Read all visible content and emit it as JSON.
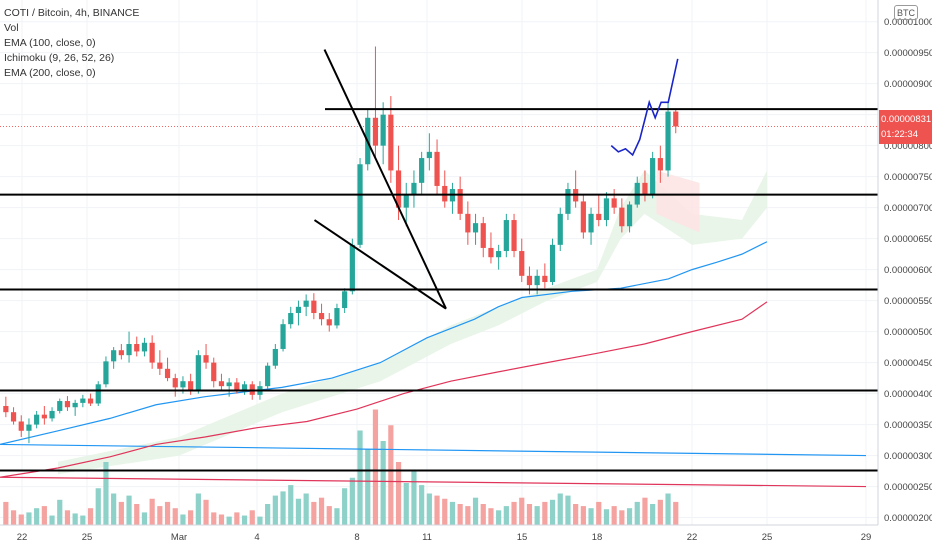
{
  "legend": {
    "title": "COTI / Bitcoin, 4h, BINANCE",
    "lines": [
      "Vol",
      "EMA (100, close, 0)",
      "Ichimoku (9, 26, 52, 26)",
      "EMA (200, close, 0)"
    ]
  },
  "currency": "BTC",
  "last_price": {
    "price": "0.00000831",
    "countdown": "01:22:34"
  },
  "colors": {
    "up": "#26a69a",
    "down": "#ef5350",
    "vol_up": "#8ed1c9",
    "vol_down": "#f4a3a0",
    "ema100": "#2196f3",
    "ema200": "#e0355a",
    "projection": "#1a25c8",
    "cloud_up": "#e6f4e6",
    "cloud_down": "#fde4e4",
    "drawing": "#000000"
  },
  "chart_data": {
    "type": "candlestick",
    "title": "COTI / Bitcoin, 4h, BINANCE",
    "y_ticks": [
      "0.00000200",
      "0.00000250",
      "0.00000300",
      "0.00000350",
      "0.00000400",
      "0.00000450",
      "0.00000500",
      "0.00000550",
      "0.00000600",
      "0.00000650",
      "0.00000700",
      "0.00000750",
      "0.00000800",
      "0.00000850",
      "0.00000900",
      "0.00000950",
      "0.00001000"
    ],
    "ylim": [
      1.88e-06,
      1.035e-05
    ],
    "x_ticks": [
      "22",
      "25",
      "Mar",
      "4",
      "8",
      "11",
      "15",
      "18",
      "22",
      "25",
      "29"
    ],
    "visible_last_price": 8.31e-06,
    "horizontal_levels": [
      8.59e-06,
      7.21e-06,
      5.68e-06,
      4.05e-06,
      2.76e-06
    ],
    "wedge": {
      "upper_line": [
        [
          8.7,
          9.55e-06
        ],
        [
          13.8,
          5.37e-06
        ]
      ],
      "lower_line": [
        [
          8.3,
          6.8e-06
        ],
        [
          13.8,
          5.37e-06
        ]
      ]
    },
    "projection": [
      [
        20.6,
        8e-06
      ],
      [
        20.9,
        7.9e-06
      ],
      [
        21.2,
        7.95e-06
      ],
      [
        21.5,
        7.85e-06
      ],
      [
        21.8,
        8.1e-06
      ],
      [
        22.0,
        8.4e-06
      ],
      [
        22.2,
        8.7e-06
      ],
      [
        22.45,
        8.45e-06
      ],
      [
        22.7,
        8.7e-06
      ],
      [
        23.0,
        8.7e-06
      ],
      [
        23.4,
        9.4e-06
      ]
    ],
    "ema100": [
      [
        20.0,
        3e-06
      ],
      [
        22.0,
        3.18e-06
      ],
      [
        24.0,
        3.4e-06
      ],
      [
        26.0,
        3.6e-06
      ],
      [
        28.0,
        3.82e-06
      ],
      [
        30.0,
        3.95e-06
      ],
      [
        33.0,
        4.1e-06
      ],
      [
        35.0,
        4.25e-06
      ],
      [
        37.0,
        4.5e-06
      ],
      [
        39.0,
        4.9e-06
      ],
      [
        41.0,
        5.2e-06
      ],
      [
        42.0,
        5.4e-06
      ],
      [
        43.0,
        5.55e-06
      ],
      [
        45.0,
        5.65e-06
      ],
      [
        47.0,
        5.7e-06
      ],
      [
        49.0,
        5.85e-06
      ],
      [
        50.0,
        6e-06
      ],
      [
        51.0,
        6.12e-06
      ],
      [
        52.0,
        6.25e-06
      ],
      [
        53.0,
        6.45e-06
      ]
    ],
    "ema200": [
      [
        20.0,
        2.5e-06
      ],
      [
        22.0,
        2.65e-06
      ],
      [
        24.0,
        2.8e-06
      ],
      [
        26.0,
        2.98e-06
      ],
      [
        28.0,
        3.18e-06
      ],
      [
        30.0,
        3.3e-06
      ],
      [
        32.0,
        3.45e-06
      ],
      [
        34.0,
        3.55e-06
      ],
      [
        36.0,
        3.75e-06
      ],
      [
        38.0,
        4e-06
      ],
      [
        40.0,
        4.2e-06
      ],
      [
        42.0,
        4.35e-06
      ],
      [
        44.0,
        4.5e-06
      ],
      [
        46.0,
        4.65e-06
      ],
      [
        48.0,
        4.8e-06
      ],
      [
        50.0,
        5e-06
      ],
      [
        52.0,
        5.2e-06
      ],
      [
        53.0,
        5.48e-06
      ]
    ],
    "candles": [
      [
        3.8e-06,
        3.95e-06,
        3.62e-06,
        3.7e-06
      ],
      [
        3.7e-06,
        3.78e-06,
        3.5e-06,
        3.55e-06
      ],
      [
        3.55e-06,
        3.65e-06,
        3.3e-06,
        3.4e-06
      ],
      [
        3.4e-06,
        3.6e-06,
        3.2e-06,
        3.5e-06
      ],
      [
        3.5e-06,
        3.72e-06,
        3.44e-06,
        3.66e-06
      ],
      [
        3.66e-06,
        3.8e-06,
        3.5e-06,
        3.6e-06
      ],
      [
        3.6e-06,
        3.78e-06,
        3.55e-06,
        3.72e-06
      ],
      [
        3.72e-06,
        3.92e-06,
        3.68e-06,
        3.88e-06
      ],
      [
        3.88e-06,
        3.96e-06,
        3.72e-06,
        3.78e-06
      ],
      [
        3.78e-06,
        3.9e-06,
        3.64e-06,
        3.85e-06
      ],
      [
        3.85e-06,
        3.98e-06,
        3.78e-06,
        3.92e-06
      ],
      [
        3.92e-06,
        4e-06,
        3.8e-06,
        3.84e-06
      ],
      [
        3.84e-06,
        4.2e-06,
        3.8e-06,
        4.15e-06
      ],
      [
        4.15e-06,
        4.6e-06,
        4.1e-06,
        4.52e-06
      ],
      [
        4.52e-06,
        4.75e-06,
        4.4e-06,
        4.7e-06
      ],
      [
        4.7e-06,
        4.8e-06,
        4.55e-06,
        4.62e-06
      ],
      [
        4.62e-06,
        5e-06,
        4.5e-06,
        4.8e-06
      ],
      [
        4.8e-06,
        4.92e-06,
        4.6e-06,
        4.68e-06
      ],
      [
        4.68e-06,
        4.9e-06,
        4.6e-06,
        4.82e-06
      ],
      [
        4.82e-06,
        4.94e-06,
        4.4e-06,
        4.5e-06
      ],
      [
        4.5e-06,
        4.7e-06,
        4.3e-06,
        4.4e-06
      ],
      [
        4.4e-06,
        4.58e-06,
        4.2e-06,
        4.25e-06
      ],
      [
        4.25e-06,
        4.32e-06,
        3.95e-06,
        4.1e-06
      ],
      [
        4.1e-06,
        4.28e-06,
        4e-06,
        4.2e-06
      ],
      [
        4.2e-06,
        4.32e-06,
        3.98e-06,
        4.05e-06
      ],
      [
        4.05e-06,
        4.7e-06,
        4e-06,
        4.62e-06
      ],
      [
        4.62e-06,
        4.8e-06,
        4.4e-06,
        4.5e-06
      ],
      [
        4.5e-06,
        4.58e-06,
        4.1e-06,
        4.2e-06
      ],
      [
        4.2e-06,
        4.32e-06,
        4.05e-06,
        4.12e-06
      ],
      [
        4.12e-06,
        4.25e-06,
        3.95e-06,
        4.18e-06
      ],
      [
        4.18e-06,
        4.25e-06,
        4e-06,
        4.05e-06
      ],
      [
        4.05e-06,
        4.2e-06,
        3.98e-06,
        4.15e-06
      ],
      [
        4.15e-06,
        4.2e-06,
        3.9e-06,
        3.98e-06
      ],
      [
        3.98e-06,
        4.2e-06,
        3.9e-06,
        4.12e-06
      ],
      [
        4.12e-06,
        4.5e-06,
        4.05e-06,
        4.45e-06
      ],
      [
        4.45e-06,
        4.8e-06,
        4.4e-06,
        4.72e-06
      ],
      [
        4.72e-06,
        5.2e-06,
        4.68e-06,
        5.12e-06
      ],
      [
        5.12e-06,
        5.4e-06,
        5.05e-06,
        5.3e-06
      ],
      [
        5.3e-06,
        5.5e-06,
        5.1e-06,
        5.4e-06
      ],
      [
        5.4e-06,
        5.6e-06,
        5.25e-06,
        5.5e-06
      ],
      [
        5.5e-06,
        5.62e-06,
        5.2e-06,
        5.3e-06
      ],
      [
        5.3e-06,
        5.45e-06,
        5.1e-06,
        5.2e-06
      ],
      [
        5.2e-06,
        5.3e-06,
        5e-06,
        5.1e-06
      ],
      [
        5.1e-06,
        5.45e-06,
        5.05e-06,
        5.38e-06
      ],
      [
        5.38e-06,
        5.7e-06,
        5.3e-06,
        5.65e-06
      ],
      [
        5.65e-06,
        6.5e-06,
        5.6e-06,
        6.4e-06
      ],
      [
        6.4e-06,
        7.8e-06,
        6.35e-06,
        7.7e-06
      ],
      [
        7.7e-06,
        8.6e-06,
        7.6e-06,
        8.45e-06
      ],
      [
        8.45e-06,
        9.6e-06,
        7.8e-06,
        8e-06
      ],
      [
        8e-06,
        8.7e-06,
        7.7e-06,
        8.5e-06
      ],
      [
        8.5e-06,
        8.8e-06,
        7.4e-06,
        7.6e-06
      ],
      [
        7.6e-06,
        8e-06,
        6.8e-06,
        7e-06
      ],
      [
        7e-06,
        7.4e-06,
        6.7e-06,
        7.2e-06
      ],
      [
        7.2e-06,
        7.6e-06,
        7e-06,
        7.4e-06
      ],
      [
        7.4e-06,
        7.9e-06,
        7.2e-06,
        7.8e-06
      ],
      [
        7.8e-06,
        8.2e-06,
        7.6e-06,
        7.9e-06
      ],
      [
        7.9e-06,
        8.1e-06,
        7.2e-06,
        7.35e-06
      ],
      [
        7.35e-06,
        7.6e-06,
        7e-06,
        7.1e-06
      ],
      [
        7.1e-06,
        7.4e-06,
        6.9e-06,
        7.3e-06
      ],
      [
        7.3e-06,
        7.5e-06,
        6.8e-06,
        6.9e-06
      ],
      [
        6.9e-06,
        7.1e-06,
        6.4e-06,
        6.6e-06
      ],
      [
        6.6e-06,
        6.9e-06,
        6.4e-06,
        6.75e-06
      ],
      [
        6.75e-06,
        6.85e-06,
        6.2e-06,
        6.35e-06
      ],
      [
        6.35e-06,
        6.6e-06,
        6.1e-06,
        6.2e-06
      ],
      [
        6.2e-06,
        6.4e-06,
        6e-06,
        6.3e-06
      ],
      [
        6.3e-06,
        6.9e-06,
        6.2e-06,
        6.8e-06
      ],
      [
        6.8e-06,
        6.9e-06,
        6.2e-06,
        6.3e-06
      ],
      [
        6.3e-06,
        6.5e-06,
        5.8e-06,
        5.9e-06
      ],
      [
        5.9e-06,
        6.05e-06,
        5.6e-06,
        5.75e-06
      ],
      [
        5.75e-06,
        6e-06,
        5.6e-06,
        5.9e-06
      ],
      [
        5.9e-06,
        6.1e-06,
        5.7e-06,
        5.8e-06
      ],
      [
        5.8e-06,
        6.5e-06,
        5.75e-06,
        6.4e-06
      ],
      [
        6.4e-06,
        7e-06,
        6.3e-06,
        6.9e-06
      ],
      [
        6.9e-06,
        7.4e-06,
        6.8e-06,
        7.3e-06
      ],
      [
        7.3e-06,
        7.6e-06,
        7e-06,
        7.1e-06
      ],
      [
        7.1e-06,
        7.2e-06,
        6.5e-06,
        6.6e-06
      ],
      [
        6.6e-06,
        7e-06,
        6.4e-06,
        6.9e-06
      ],
      [
        6.9e-06,
        7.2e-06,
        6.7e-06,
        6.8e-06
      ],
      [
        6.8e-06,
        7.25e-06,
        6.7e-06,
        7.15e-06
      ],
      [
        7.15e-06,
        7.3e-06,
        6.9e-06,
        7e-06
      ],
      [
        7e-06,
        7.15e-06,
        6.6e-06,
        6.7e-06
      ],
      [
        6.7e-06,
        7.1e-06,
        6.6e-06,
        7.05e-06
      ],
      [
        7.05e-06,
        7.5e-06,
        7e-06,
        7.4e-06
      ],
      [
        7.4e-06,
        7.6e-06,
        7.1e-06,
        7.2e-06
      ],
      [
        7.2e-06,
        7.9e-06,
        7.15e-06,
        7.8e-06
      ],
      [
        7.8e-06,
        8e-06,
        7.4e-06,
        7.6e-06
      ],
      [
        7.6e-06,
        8.7e-06,
        7.5e-06,
        8.55e-06
      ],
      [
        8.55e-06,
        8.6e-06,
        8.2e-06,
        8.31e-06
      ]
    ],
    "volume": [
      22,
      14,
      10,
      12,
      16,
      18,
      9,
      24,
      14,
      11,
      9,
      16,
      35,
      60,
      30,
      22,
      28,
      20,
      12,
      25,
      18,
      22,
      16,
      10,
      14,
      30,
      24,
      12,
      10,
      8,
      12,
      9,
      14,
      8,
      20,
      28,
      32,
      38,
      25,
      30,
      22,
      26,
      18,
      16,
      35,
      45,
      90,
      72,
      110,
      80,
      95,
      60,
      40,
      52,
      38,
      30,
      28,
      25,
      22,
      20,
      18,
      26,
      20,
      16,
      14,
      18,
      22,
      26,
      20,
      18,
      22,
      24,
      30,
      28,
      20,
      18,
      16,
      22,
      15,
      18,
      14,
      16,
      22,
      26,
      20,
      24,
      30,
      22
    ]
  }
}
